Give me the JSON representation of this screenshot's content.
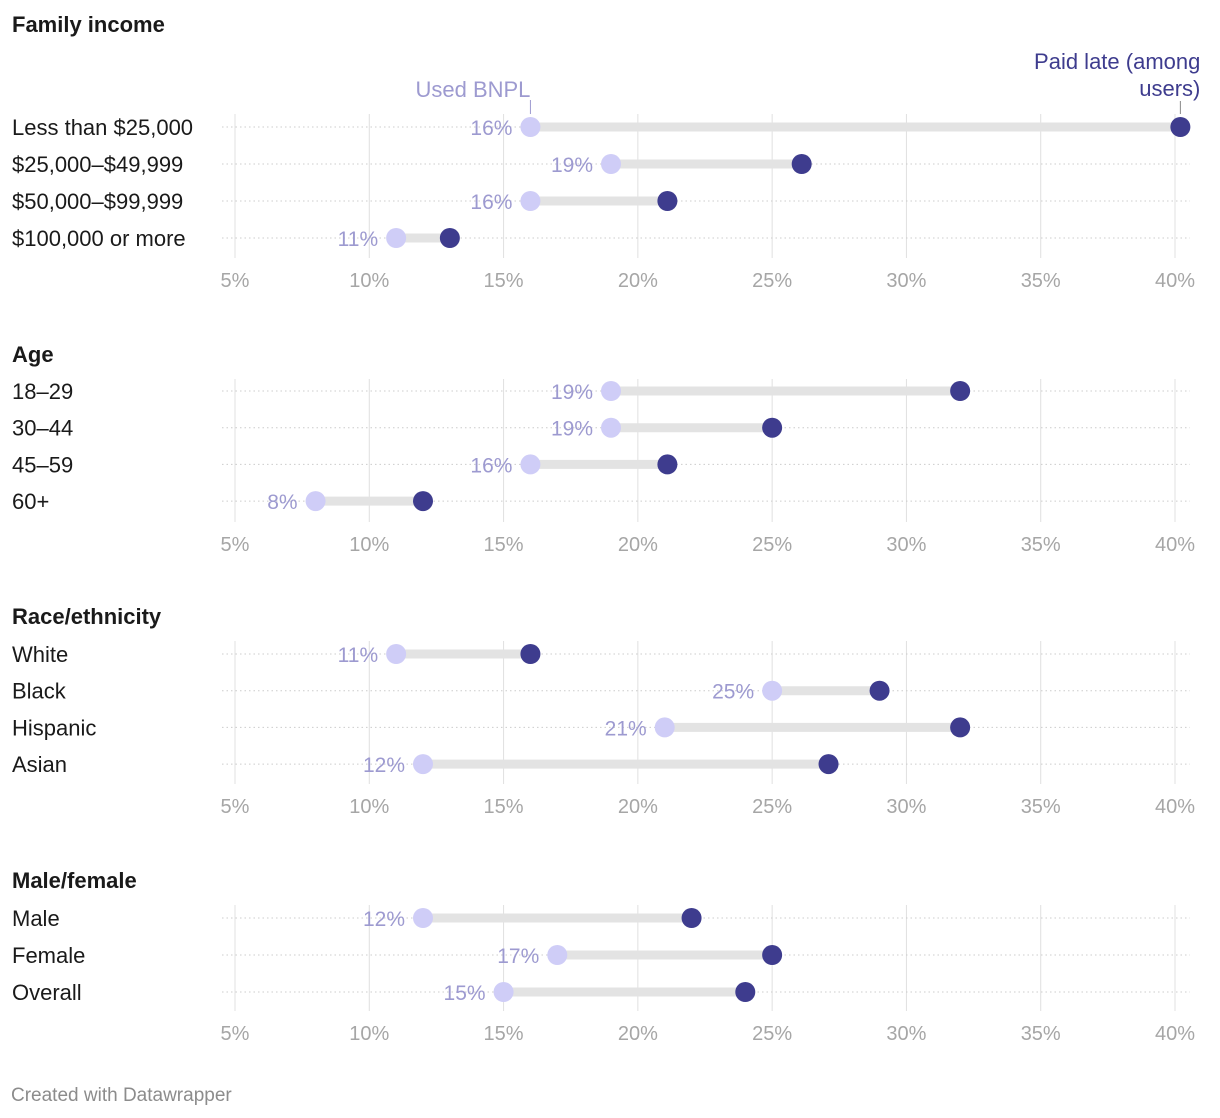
{
  "chart_data": {
    "type": "dumbbell",
    "series": [
      {
        "key": "used",
        "name": "Used BNPL",
        "color": "#cfcdf7",
        "label_color": "#9d9ad0"
      },
      {
        "key": "late",
        "name": "Paid late (among users)",
        "color": "#3e3c8e",
        "label_color": "#3e3c8e"
      }
    ],
    "legend_lines": [
      "Paid late (among",
      "users)"
    ],
    "x_axis": {
      "min": 5,
      "max": 40,
      "ticks": [
        5,
        10,
        15,
        20,
        25,
        30,
        35,
        40
      ],
      "tick_labels": [
        "5%",
        "10%",
        "15%",
        "20%",
        "25%",
        "30%",
        "35%",
        "40%"
      ]
    },
    "panels": [
      {
        "title": "Family income",
        "show_legend": true,
        "rows": [
          {
            "label": "Less than $25,000",
            "used": 16,
            "late": 40.2,
            "used_label": "16%"
          },
          {
            "label": "$25,000–$49,999",
            "used": 19,
            "late": 26.1,
            "used_label": "19%"
          },
          {
            "label": "$50,000–$99,999",
            "used": 16,
            "late": 21.1,
            "used_label": "16%"
          },
          {
            "label": "$100,000 or more",
            "used": 11,
            "late": 13,
            "used_label": "11%"
          }
        ]
      },
      {
        "title": "Age",
        "show_legend": false,
        "rows": [
          {
            "label": "18–29",
            "used": 19,
            "late": 32,
            "used_label": "19%"
          },
          {
            "label": "30–44",
            "used": 19,
            "late": 25,
            "used_label": "19%"
          },
          {
            "label": "45–59",
            "used": 16,
            "late": 21.1,
            "used_label": "16%"
          },
          {
            "label": "60+",
            "used": 8,
            "late": 12,
            "used_label": "8%"
          }
        ]
      },
      {
        "title": "Race/ethnicity",
        "show_legend": false,
        "rows": [
          {
            "label": "White",
            "used": 11,
            "late": 16,
            "used_label": "11%"
          },
          {
            "label": "Black",
            "used": 25,
            "late": 29,
            "used_label": "25%"
          },
          {
            "label": "Hispanic",
            "used": 21,
            "late": 32,
            "used_label": "21%"
          },
          {
            "label": "Asian",
            "used": 12,
            "late": 27.1,
            "used_label": "12%"
          }
        ]
      },
      {
        "title": "Male/female",
        "show_legend": false,
        "rows": [
          {
            "label": "Male",
            "used": 12,
            "late": 22,
            "used_label": "12%"
          },
          {
            "label": "Female",
            "used": 17,
            "late": 25,
            "used_label": "17%"
          },
          {
            "label": "Overall",
            "used": 15,
            "late": 24,
            "used_label": "15%"
          }
        ]
      }
    ]
  },
  "footer": {
    "credit": "Created with Datawrapper"
  },
  "colors": {
    "grid": "#e0e0e0",
    "row_dotted": "#cccccc",
    "bar": "#e3e3e3",
    "tick": "#a6a6a6",
    "text": "#1a1a1a"
  }
}
